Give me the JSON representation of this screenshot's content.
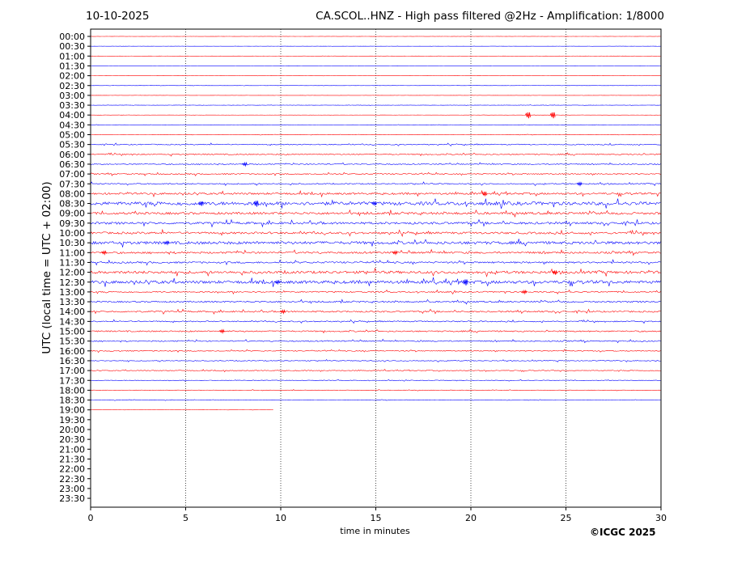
{
  "header": {
    "date": "10-10-2025",
    "title": "CA.SCOL..HNZ - High pass filtered @2Hz - Amplification: 1/8000"
  },
  "credit": "©ICGC 2025",
  "chart_data": {
    "type": "line",
    "xlabel": "time in minutes",
    "ylabel": "UTC (local time = UTC + 02:00)",
    "xlim": [
      0,
      30
    ],
    "xticks": [
      0,
      5,
      10,
      15,
      20,
      25,
      30
    ],
    "grid": "vertical dotted at every 5 minutes",
    "trace_colors": [
      "#ff0000",
      "#0000ff"
    ],
    "row_labels": [
      "00:00",
      "00:30",
      "01:00",
      "01:30",
      "02:00",
      "02:30",
      "03:00",
      "03:30",
      "04:00",
      "04:30",
      "05:00",
      "05:30",
      "06:00",
      "06:30",
      "07:00",
      "07:30",
      "08:00",
      "08:30",
      "09:00",
      "09:30",
      "10:00",
      "10:30",
      "11:00",
      "11:30",
      "12:00",
      "12:30",
      "13:00",
      "13:30",
      "14:00",
      "14:30",
      "15:00",
      "15:30",
      "16:00",
      "16:30",
      "17:00",
      "17:30",
      "18:00",
      "18:30",
      "19:00",
      "19:30",
      "20:00",
      "20:30",
      "21:00",
      "21:30",
      "22:00",
      "22:30",
      "23:00",
      "23:30"
    ],
    "traces": [
      {
        "row": "00:00",
        "end": 30,
        "noise": 0.02
      },
      {
        "row": "00:30",
        "end": 30,
        "noise": 0.03
      },
      {
        "row": "01:00",
        "end": 30,
        "noise": 0.04
      },
      {
        "row": "01:30",
        "end": 30,
        "noise": 0.02
      },
      {
        "row": "02:00",
        "end": 30,
        "noise": 0.03
      },
      {
        "row": "02:30",
        "end": 30,
        "noise": 0.05
      },
      {
        "row": "03:00",
        "end": 30,
        "noise": 0.03
      },
      {
        "row": "03:30",
        "end": 30,
        "noise": 0.06
      },
      {
        "row": "04:00",
        "end": 30,
        "noise": 0.04
      },
      {
        "row": "04:30",
        "end": 30,
        "noise": 0.06
      },
      {
        "row": "05:00",
        "end": 30,
        "noise": 0.08
      },
      {
        "row": "05:30",
        "end": 30,
        "noise": 0.25
      },
      {
        "row": "06:00",
        "end": 30,
        "noise": 0.3
      },
      {
        "row": "06:30",
        "end": 30,
        "noise": 0.25
      },
      {
        "row": "07:00",
        "end": 30,
        "noise": 0.3
      },
      {
        "row": "07:30",
        "end": 30,
        "noise": 0.3
      },
      {
        "row": "08:00",
        "end": 30,
        "noise": 0.5
      },
      {
        "row": "08:30",
        "end": 30,
        "noise": 0.9
      },
      {
        "row": "09:00",
        "end": 30,
        "noise": 0.6
      },
      {
        "row": "09:30",
        "end": 30,
        "noise": 0.6
      },
      {
        "row": "10:00",
        "end": 30,
        "noise": 0.55
      },
      {
        "row": "10:30",
        "end": 30,
        "noise": 0.75
      },
      {
        "row": "11:00",
        "end": 30,
        "noise": 0.5
      },
      {
        "row": "11:30",
        "end": 30,
        "noise": 0.45
      },
      {
        "row": "12:00",
        "end": 30,
        "noise": 0.7
      },
      {
        "row": "12:30",
        "end": 30,
        "noise": 0.8
      },
      {
        "row": "13:00",
        "end": 30,
        "noise": 0.35
      },
      {
        "row": "13:30",
        "end": 30,
        "noise": 0.4
      },
      {
        "row": "14:00",
        "end": 30,
        "noise": 0.4
      },
      {
        "row": "14:30",
        "end": 30,
        "noise": 0.3
      },
      {
        "row": "15:00",
        "end": 30,
        "noise": 0.35
      },
      {
        "row": "15:30",
        "end": 30,
        "noise": 0.3
      },
      {
        "row": "16:00",
        "end": 30,
        "noise": 0.25
      },
      {
        "row": "16:30",
        "end": 30,
        "noise": 0.2
      },
      {
        "row": "17:00",
        "end": 30,
        "noise": 0.2
      },
      {
        "row": "17:30",
        "end": 30,
        "noise": 0.15
      },
      {
        "row": "18:00",
        "end": 30,
        "noise": 0.12
      },
      {
        "row": "18:30",
        "end": 30,
        "noise": 0.1
      },
      {
        "row": "19:00",
        "end": 9.6,
        "noise": 0.03
      }
    ],
    "events": [
      {
        "row": "04:00",
        "x": 23.0,
        "amp": 4
      },
      {
        "row": "04:00",
        "x": 24.3,
        "amp": 4
      },
      {
        "row": "06:30",
        "x": 8.1,
        "amp": 2
      },
      {
        "row": "07:30",
        "x": 25.7,
        "amp": 2
      },
      {
        "row": "08:00",
        "x": 20.7,
        "amp": 3
      },
      {
        "row": "08:30",
        "x": 5.8,
        "amp": 3
      },
      {
        "row": "08:30",
        "x": 8.7,
        "amp": 4
      },
      {
        "row": "08:30",
        "x": 14.9,
        "amp": 2
      },
      {
        "row": "10:30",
        "x": 4.0,
        "amp": 2
      },
      {
        "row": "11:00",
        "x": 0.7,
        "amp": 2
      },
      {
        "row": "11:00",
        "x": 16.0,
        "amp": 2
      },
      {
        "row": "12:00",
        "x": 24.4,
        "amp": 2.5
      },
      {
        "row": "12:30",
        "x": 9.8,
        "amp": 2
      },
      {
        "row": "12:30",
        "x": 19.7,
        "amp": 4
      },
      {
        "row": "13:00",
        "x": 22.8,
        "amp": 2
      },
      {
        "row": "14:00",
        "x": 10.1,
        "amp": 2
      },
      {
        "row": "15:00",
        "x": 6.9,
        "amp": 2
      }
    ]
  }
}
